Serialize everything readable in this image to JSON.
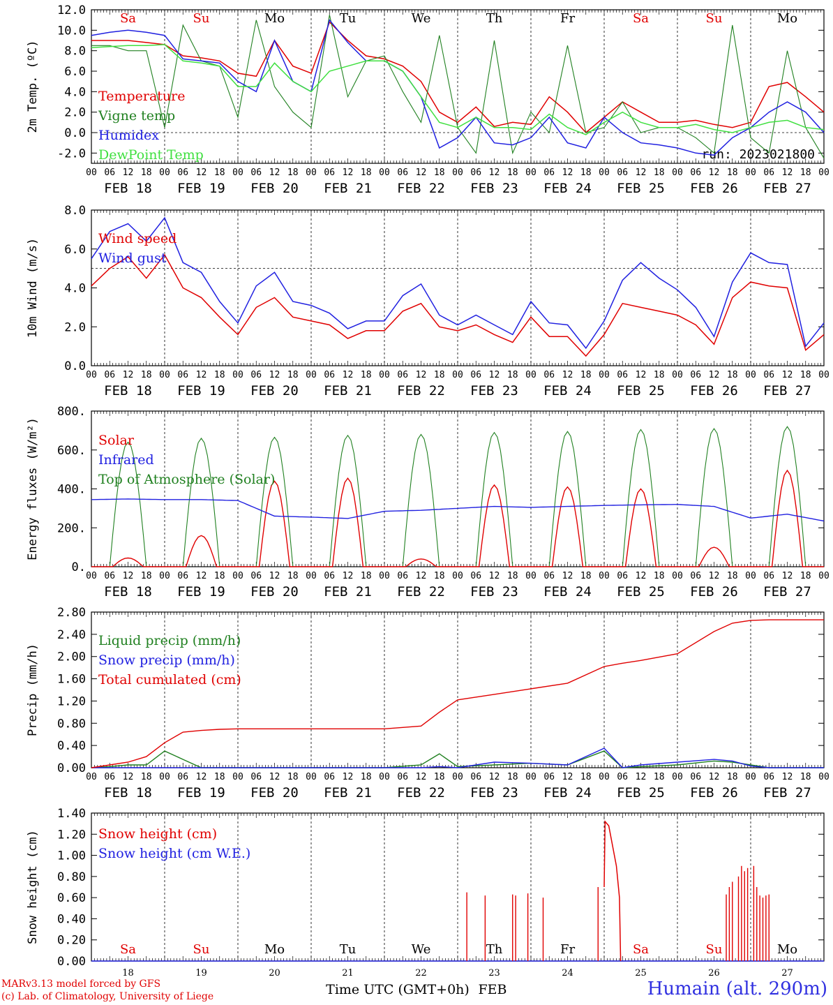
{
  "run_label": "run: 2023021800",
  "day_names": [
    "Sa",
    "Su",
    "Mo",
    "Tu",
    "We",
    "Th",
    "Fr",
    "Sa",
    "Su",
    "Mo"
  ],
  "day_name_colors": [
    "#e00000",
    "#e00000",
    "#000000",
    "#000000",
    "#000000",
    "#000000",
    "#000000",
    "#e00000",
    "#e00000",
    "#000000"
  ],
  "date_labels": [
    "FEB 18",
    "FEB 19",
    "FEB 20",
    "FEB 21",
    "FEB 22",
    "FEB 23",
    "FEB 24",
    "FEB 25",
    "FEB 26",
    "FEB 27"
  ],
  "hour_labels": [
    "00",
    "06",
    "12",
    "18"
  ],
  "bottom_day_numbers": [
    "18",
    "19",
    "20",
    "21",
    "22",
    "23",
    "24",
    "25",
    "26",
    "27"
  ],
  "x_axis_title": "Time UTC (GMT+0h)",
  "x_axis_month": "FEB",
  "credit_line1": "MARv3.13 model forced by GFS",
  "credit_line2": "(c) Lab. of Climatology, University of Liege",
  "station_label": "Humain (alt. 290m)",
  "colors": {
    "red": "#e00000",
    "green": "#208020",
    "blue": "#2020e0",
    "lightgreen": "#40e040"
  },
  "chart_data": [
    {
      "type": "line",
      "ylabel": "2m Temp. (ºC)",
      "ylim": [
        -3,
        12
      ],
      "yticks": [
        "12.0",
        "10.0",
        "8.0",
        "6.0",
        "4.0",
        "2.0",
        "0.0",
        "-2.0"
      ],
      "ytick_values": [
        12,
        10,
        8,
        6,
        4,
        2,
        0,
        -2
      ],
      "reference_line": 0,
      "x_hours": [
        0,
        6,
        12,
        18,
        24,
        30,
        36,
        42,
        48,
        54,
        60,
        66,
        72,
        78,
        84,
        90,
        96,
        102,
        108,
        114,
        120,
        126,
        132,
        138,
        144,
        150,
        156,
        162,
        168,
        174,
        180,
        186,
        192,
        198,
        204,
        210,
        216,
        222,
        228,
        234,
        240
      ],
      "series": [
        {
          "name": "Temperature",
          "color": "#e00000",
          "values": [
            9.0,
            9.0,
            9.0,
            8.8,
            8.6,
            7.5,
            7.3,
            7.0,
            5.8,
            5.5,
            9.0,
            6.5,
            5.8,
            10.8,
            9.0,
            7.5,
            7.2,
            6.5,
            5.0,
            2.0,
            1.0,
            2.5,
            0.6,
            1.0,
            0.8,
            3.5,
            2.0,
            0.0,
            1.5,
            3.0,
            2.0,
            1.0,
            1.0,
            1.2,
            0.8,
            0.5,
            1.0,
            4.5,
            4.9,
            3.5,
            2.0
          ]
        },
        {
          "name": "Vigne temp",
          "color": "#208020",
          "values": [
            8.5,
            8.5,
            8.0,
            8.0,
            0.5,
            10.5,
            7.0,
            6.5,
            1.5,
            11.0,
            4.5,
            2.0,
            0.5,
            11.5,
            3.5,
            7.0,
            7.5,
            4.0,
            1.0,
            9.5,
            0.5,
            -2.0,
            9.0,
            -2.0,
            2.0,
            0.0,
            8.5,
            0.0,
            0.5,
            3.0,
            0.0,
            0.5,
            0.5,
            -0.5,
            -2.0,
            10.5,
            -0.5,
            -2.0,
            8.0,
            0.5,
            -2.5
          ]
        },
        {
          "name": "Humidex",
          "color": "#2020e0",
          "values": [
            9.5,
            9.8,
            10.0,
            9.8,
            9.5,
            7.2,
            7.0,
            6.8,
            5.0,
            4.0,
            9.0,
            5.0,
            4.0,
            11.0,
            8.8,
            7.0,
            7.0,
            6.0,
            3.5,
            -1.5,
            -0.5,
            1.5,
            -1.0,
            -1.2,
            -0.5,
            1.5,
            -1.0,
            -1.5,
            1.5,
            0.0,
            -1.0,
            -1.2,
            -1.5,
            -2.0,
            -2.2,
            -0.5,
            0.5,
            2.0,
            3.0,
            2.0,
            0.0
          ]
        },
        {
          "name": "DewPoint Temp",
          "color": "#40e040",
          "values": [
            8.3,
            8.4,
            8.5,
            8.5,
            8.6,
            7.0,
            6.8,
            6.5,
            4.5,
            4.5,
            6.8,
            5.0,
            4.0,
            6.0,
            6.5,
            7.0,
            7.0,
            6.0,
            3.5,
            1.0,
            0.5,
            1.5,
            0.5,
            0.5,
            0.3,
            1.8,
            0.5,
            -0.2,
            1.0,
            2.0,
            1.0,
            0.5,
            0.5,
            0.8,
            0.3,
            0.0,
            0.5,
            1.0,
            1.2,
            0.5,
            0.3
          ]
        }
      ]
    },
    {
      "type": "line",
      "ylabel": "10m Wind (m/s)",
      "ylim": [
        0,
        8
      ],
      "yticks": [
        "8.0",
        "6.0",
        "4.0",
        "2.0",
        "0.0"
      ],
      "ytick_values": [
        8,
        6,
        4,
        2,
        0
      ],
      "reference_line": 5,
      "x_hours": [
        0,
        6,
        12,
        18,
        24,
        30,
        36,
        42,
        48,
        54,
        60,
        66,
        72,
        78,
        84,
        90,
        96,
        102,
        108,
        114,
        120,
        126,
        132,
        138,
        144,
        150,
        156,
        162,
        168,
        174,
        180,
        186,
        192,
        198,
        204,
        210,
        216,
        222,
        228,
        234,
        240
      ],
      "series": [
        {
          "name": "Wind speed",
          "color": "#e00000",
          "values": [
            4.1,
            5.0,
            5.6,
            4.5,
            5.7,
            4.0,
            3.5,
            2.5,
            1.6,
            3.0,
            3.5,
            2.5,
            2.3,
            2.1,
            1.4,
            1.8,
            1.8,
            2.8,
            3.2,
            2.0,
            1.8,
            2.1,
            1.6,
            1.2,
            2.5,
            1.5,
            1.5,
            0.5,
            1.6,
            3.2,
            3.0,
            2.8,
            2.6,
            2.1,
            1.1,
            3.5,
            4.3,
            4.1,
            4.0,
            0.8,
            1.6
          ]
        },
        {
          "name": "Wind gust",
          "color": "#2020e0",
          "values": [
            5.5,
            6.9,
            7.3,
            6.4,
            7.6,
            5.3,
            4.8,
            3.3,
            2.2,
            4.1,
            4.8,
            3.3,
            3.1,
            2.7,
            1.9,
            2.3,
            2.3,
            3.6,
            4.2,
            2.6,
            2.1,
            2.6,
            2.1,
            1.6,
            3.3,
            2.2,
            2.1,
            0.9,
            2.3,
            4.4,
            5.3,
            4.5,
            3.9,
            3.0,
            1.5,
            4.3,
            5.8,
            5.3,
            5.2,
            1.0,
            2.2
          ]
        }
      ]
    },
    {
      "type": "line",
      "ylabel": "Energy fluxes (W/m²)",
      "ylim": [
        0,
        800
      ],
      "yticks": [
        "800.",
        "600.",
        "400.",
        "200.",
        "0."
      ],
      "ytick_values": [
        800,
        600,
        400,
        200,
        0
      ],
      "daily_peaks": {
        "Solar": [
          45,
          160,
          440,
          455,
          40,
          420,
          410,
          400,
          100,
          495
        ],
        "Top of Atmosphere (Solar)": [
          640,
          660,
          665,
          675,
          680,
          690,
          695,
          705,
          710,
          720
        ]
      },
      "infrared_hourly": {
        "x_hours": [
          0,
          12,
          24,
          36,
          48,
          60,
          72,
          84,
          96,
          108,
          120,
          132,
          144,
          156,
          168,
          180,
          192,
          204,
          216,
          228,
          240
        ],
        "values": [
          345,
          348,
          345,
          345,
          340,
          260,
          255,
          248,
          285,
          290,
          300,
          310,
          305,
          310,
          315,
          318,
          320,
          310,
          250,
          270,
          235
        ]
      },
      "series": [
        {
          "name": "Solar",
          "color": "#e00000"
        },
        {
          "name": "Infrared",
          "color": "#2020e0"
        },
        {
          "name": "Top of Atmosphere (Solar)",
          "color": "#208020"
        }
      ]
    },
    {
      "type": "line",
      "ylabel": "Precip (mm/h)",
      "ylim": [
        0,
        2.8
      ],
      "yticks": [
        "2.80",
        "2.40",
        "2.00",
        "1.60",
        "1.20",
        "0.80",
        "0.40",
        "0.00"
      ],
      "ytick_values": [
        2.8,
        2.4,
        2.0,
        1.6,
        1.2,
        0.8,
        0.4,
        0.0
      ],
      "x_hours": [
        0,
        6,
        12,
        18,
        24,
        30,
        36,
        42,
        48,
        60,
        72,
        84,
        96,
        108,
        114,
        120,
        132,
        144,
        156,
        168,
        174,
        180,
        192,
        204,
        210,
        216,
        222,
        228,
        234,
        240
      ],
      "series": [
        {
          "name": "Liquid precip (mm/h)",
          "color": "#208020",
          "values": [
            0.0,
            0.02,
            0.05,
            0.05,
            0.3,
            0.15,
            0.0,
            0.0,
            0.0,
            0.0,
            0.0,
            0.0,
            0.0,
            0.05,
            0.25,
            0.02,
            0.05,
            0.08,
            0.05,
            0.3,
            0.0,
            0.02,
            0.05,
            0.12,
            0.1,
            0.05,
            0.0,
            0.0,
            0.0,
            0.0
          ]
        },
        {
          "name": "Snow precip (mm/h)",
          "color": "#2020e0",
          "values": [
            0.0,
            0.0,
            0.0,
            0.0,
            0.0,
            0.0,
            0.0,
            0.0,
            0.0,
            0.0,
            0.0,
            0.0,
            0.0,
            0.0,
            0.02,
            0.0,
            0.1,
            0.08,
            0.05,
            0.35,
            0.0,
            0.05,
            0.1,
            0.15,
            0.12,
            0.03,
            0.0,
            0.0,
            0.0,
            0.0
          ]
        },
        {
          "name": "Total cumulated (cm)",
          "color": "#e00000",
          "values": [
            0.0,
            0.05,
            0.1,
            0.2,
            0.45,
            0.64,
            0.67,
            0.69,
            0.7,
            0.7,
            0.7,
            0.7,
            0.7,
            0.75,
            1.0,
            1.22,
            1.32,
            1.42,
            1.52,
            1.82,
            1.88,
            1.93,
            2.05,
            2.45,
            2.6,
            2.65,
            2.66,
            2.66,
            2.66,
            2.66
          ]
        }
      ]
    },
    {
      "type": "line",
      "ylabel": "Snow height (cm)",
      "ylim": [
        0,
        1.4
      ],
      "yticks": [
        "1.40",
        "1.20",
        "1.00",
        "0.80",
        "0.60",
        "0.40",
        "0.20",
        "0.00"
      ],
      "ytick_values": [
        1.4,
        1.2,
        1.0,
        0.8,
        0.6,
        0.4,
        0.2,
        0.0
      ],
      "snow_spikes": {
        "x_hours": [
          123,
          129,
          138,
          139,
          143,
          148,
          166,
          208,
          209,
          210,
          212,
          213,
          214,
          215,
          217,
          218,
          219,
          220,
          221,
          222
        ],
        "values": [
          0.65,
          0.62,
          0.63,
          0.62,
          0.64,
          0.6,
          0.7,
          0.63,
          0.7,
          0.75,
          0.8,
          0.9,
          0.85,
          0.88,
          0.9,
          0.7,
          0.62,
          0.6,
          0.62,
          0.63
        ]
      },
      "snow_event": {
        "x_hours": [
          168.0,
          168.3,
          169.5,
          172.0,
          173.0,
          173.4
        ],
        "values": [
          0.7,
          1.32,
          1.28,
          0.9,
          0.6,
          0.0
        ]
      },
      "series": [
        {
          "name": "Snow height (cm)",
          "color": "#e00000"
        },
        {
          "name": "Snow height (cm W.E.)",
          "color": "#2020e0"
        }
      ]
    }
  ]
}
